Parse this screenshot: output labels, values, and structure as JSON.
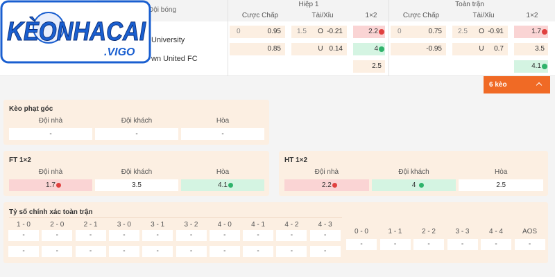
{
  "logo": {
    "brand": "KÈONHACAI",
    "suffix": ".VIGO"
  },
  "table": {
    "team_header": "Đội bóng",
    "periods": [
      "Hiệp 1",
      "Toàn trận"
    ],
    "markets": [
      "Cược Chấp",
      "Tài/Xỉu",
      "1×2"
    ],
    "teams": [
      "University",
      "wn United FC"
    ],
    "rows": [
      {
        "hiep1": {
          "handicap": [
            "0",
            "0.95"
          ],
          "over_under": [
            "1.5",
            "O",
            "-0.21"
          ],
          "x12": "2.2"
        },
        "full": {
          "handicap": [
            "0",
            "0.75"
          ],
          "over_under": [
            "2.5",
            "O",
            "-0.91"
          ],
          "x12": "1.7"
        }
      },
      {
        "hiep1": {
          "handicap": [
            "0.85"
          ],
          "over_under": [
            "U",
            "0.14"
          ],
          "x12": "4"
        },
        "full": {
          "handicap": [
            "-0.95"
          ],
          "over_under": [
            "U",
            "0.7"
          ],
          "x12": "3.5"
        }
      },
      {
        "hiep1": {
          "x12": "2.5"
        },
        "full": {
          "x12": "4.1"
        }
      }
    ],
    "more_button": "6 kèo"
  },
  "corner": {
    "title": "Kèo phạt góc",
    "labels": [
      "Đội nhà",
      "Đội khách",
      "Hòa"
    ],
    "values": [
      "-",
      "-",
      "-"
    ]
  },
  "ft": {
    "title": "FT 1×2",
    "labels": [
      "Đội nhà",
      "Đội khách",
      "Hòa"
    ],
    "values": [
      "1.7",
      "3.5",
      "4.1"
    ]
  },
  "ht": {
    "title": "HT 1×2",
    "labels": [
      "Đội nhà",
      "Đội khách",
      "Hòa"
    ],
    "values": [
      "2.2",
      "4",
      "2.5"
    ]
  },
  "correct_score": {
    "title": "Tỷ số chính xác toàn trận",
    "columns": [
      {
        "label": "1 - 0",
        "values": [
          "-",
          "-"
        ]
      },
      {
        "label": "2 - 0",
        "values": [
          "-",
          "-"
        ]
      },
      {
        "label": "2 - 1",
        "values": [
          "-",
          "-"
        ]
      },
      {
        "label": "3 - 0",
        "values": [
          "-",
          "-"
        ]
      },
      {
        "label": "3 - 1",
        "values": [
          "-",
          "-"
        ]
      },
      {
        "label": "3 - 2",
        "values": [
          "-",
          "-"
        ]
      },
      {
        "label": "4 - 0",
        "values": [
          "-",
          "-"
        ]
      },
      {
        "label": "4 - 1",
        "values": [
          "-",
          "-"
        ]
      },
      {
        "label": "4 - 2",
        "values": [
          "-",
          "-"
        ]
      },
      {
        "label": "4 - 3",
        "values": [
          "-",
          "-"
        ]
      }
    ],
    "draws": [
      {
        "label": "0 - 0",
        "value": "-"
      },
      {
        "label": "1 - 1",
        "value": "-"
      },
      {
        "label": "2 - 2",
        "value": "-"
      },
      {
        "label": "3 - 3",
        "value": "-"
      },
      {
        "label": "4 - 4",
        "value": "-"
      },
      {
        "label": "AOS",
        "value": "-"
      }
    ]
  }
}
